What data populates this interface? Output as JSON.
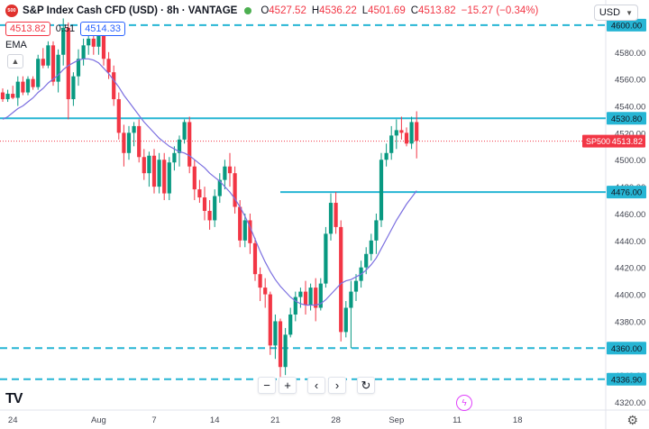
{
  "header": {
    "badge_text": "500",
    "title": "S&P Index Cash CFD (USD) · 8h · VANTAGE",
    "ohlc": [
      {
        "label": "O",
        "value": "4527.52"
      },
      {
        "label": "H",
        "value": "4536.22"
      },
      {
        "label": "L",
        "value": "4501.69"
      },
      {
        "label": "C",
        "value": "4513.82"
      },
      {
        "label": "",
        "value": "−15.27 (−0.34%)"
      }
    ],
    "bid": "4513.82",
    "spread": "0.51",
    "ask": "4514.33",
    "indicator": "EMA",
    "currency": "USD"
  },
  "colors": {
    "up": "#089981",
    "down": "#f23645",
    "ema": "#7b6fe0",
    "horizontal_line": "#26b5d4",
    "last_price": "#f23645"
  },
  "chart_data": {
    "type": "candlestick",
    "y_axis": {
      "range": [
        4314,
        4612
      ],
      "ticks": [
        "4320.00",
        "4340.00",
        "4360.00",
        "4380.00",
        "4400.00",
        "4420.00",
        "4440.00",
        "4460.00",
        "4480.00",
        "4500.00",
        "4520.00",
        "4540.00",
        "4560.00",
        "4580.00",
        "4600.00"
      ]
    },
    "x_axis": {
      "labels": [
        {
          "text": "24",
          "bar": 2
        },
        {
          "text": "Aug",
          "bar": 19
        },
        {
          "text": "7",
          "bar": 30
        },
        {
          "text": "14",
          "bar": 42
        },
        {
          "text": "21",
          "bar": 54
        },
        {
          "text": "28",
          "bar": 66
        },
        {
          "text": "Sep",
          "bar": 78
        },
        {
          "text": "11",
          "bar": 90
        },
        {
          "text": "18",
          "bar": 102
        }
      ]
    },
    "candles": [
      [
        4550,
        4553,
        4543,
        4545
      ],
      [
        4545,
        4552,
        4543,
        4549
      ],
      [
        4549,
        4555,
        4545,
        4546
      ],
      [
        4546,
        4562,
        4540,
        4558
      ],
      [
        4558,
        4562,
        4548,
        4550
      ],
      [
        4550,
        4562,
        4548,
        4560
      ],
      [
        4560,
        4562,
        4552,
        4554
      ],
      [
        4554,
        4578,
        4552,
        4575
      ],
      [
        4575,
        4583,
        4568,
        4570
      ],
      [
        4570,
        4588,
        4568,
        4585
      ],
      [
        4585,
        4588,
        4555,
        4558
      ],
      [
        4558,
        4582,
        4550,
        4578
      ],
      [
        4578,
        4605,
        4570,
        4598
      ],
      [
        4598,
        4602,
        4530,
        4545
      ],
      [
        4545,
        4565,
        4540,
        4562
      ],
      [
        4562,
        4582,
        4555,
        4575
      ],
      [
        4575,
        4590,
        4570,
        4585
      ],
      [
        4585,
        4592,
        4578,
        4590
      ],
      [
        4590,
        4596,
        4578,
        4584
      ],
      [
        4584,
        4595,
        4578,
        4592
      ],
      [
        4592,
        4598,
        4570,
        4575
      ],
      [
        4575,
        4580,
        4560,
        4565
      ],
      [
        4565,
        4570,
        4540,
        4545
      ],
      [
        4545,
        4550,
        4515,
        4520
      ],
      [
        4520,
        4526,
        4495,
        4505
      ],
      [
        4505,
        4525,
        4500,
        4520
      ],
      [
        4520,
        4528,
        4510,
        4525
      ],
      [
        4525,
        4530,
        4498,
        4502
      ],
      [
        4502,
        4508,
        4485,
        4490
      ],
      [
        4490,
        4506,
        4480,
        4503
      ],
      [
        4503,
        4508,
        4475,
        4480
      ],
      [
        4480,
        4505,
        4475,
        4500
      ],
      [
        4500,
        4505,
        4470,
        4475
      ],
      [
        4475,
        4502,
        4470,
        4498
      ],
      [
        4498,
        4510,
        4492,
        4505
      ],
      [
        4505,
        4518,
        4495,
        4515
      ],
      [
        4515,
        4530,
        4512,
        4528
      ],
      [
        4528,
        4532,
        4490,
        4495
      ],
      [
        4495,
        4500,
        4470,
        4478
      ],
      [
        4478,
        4485,
        4468,
        4472
      ],
      [
        4472,
        4480,
        4455,
        4462
      ],
      [
        4462,
        4470,
        4448,
        4455
      ],
      [
        4455,
        4478,
        4450,
        4473
      ],
      [
        4473,
        4490,
        4468,
        4485
      ],
      [
        4485,
        4500,
        4478,
        4495
      ],
      [
        4495,
        4505,
        4480,
        4490
      ],
      [
        4490,
        4495,
        4460,
        4465
      ],
      [
        4465,
        4470,
        4435,
        4440
      ],
      [
        4440,
        4460,
        4435,
        4455
      ],
      [
        4455,
        4460,
        4430,
        4438
      ],
      [
        4438,
        4442,
        4410,
        4415
      ],
      [
        4415,
        4420,
        4395,
        4405
      ],
      [
        4405,
        4412,
        4390,
        4400
      ],
      [
        4400,
        4402,
        4355,
        4362
      ],
      [
        4362,
        4385,
        4352,
        4380
      ],
      [
        4380,
        4382,
        4338,
        4346
      ],
      [
        4346,
        4375,
        4340,
        4370
      ],
      [
        4370,
        4390,
        4368,
        4385
      ],
      [
        4385,
        4402,
        4380,
        4398
      ],
      [
        4398,
        4405,
        4390,
        4402
      ],
      [
        4402,
        4410,
        4385,
        4392
      ],
      [
        4392,
        4408,
        4388,
        4405
      ],
      [
        4405,
        4412,
        4380,
        4390
      ],
      [
        4390,
        4412,
        4388,
        4408
      ],
      [
        4408,
        4450,
        4405,
        4445
      ],
      [
        4445,
        4475,
        4440,
        4468
      ],
      [
        4468,
        4476,
        4445,
        4450
      ],
      [
        4450,
        4455,
        4365,
        4372
      ],
      [
        4372,
        4395,
        4368,
        4390
      ],
      [
        4390,
        4410,
        4360,
        4402
      ],
      [
        4402,
        4415,
        4395,
        4410
      ],
      [
        4410,
        4425,
        4405,
        4420
      ],
      [
        4420,
        4435,
        4415,
        4430
      ],
      [
        4430,
        4445,
        4425,
        4440
      ],
      [
        4440,
        4460,
        4430,
        4455
      ],
      [
        4455,
        4505,
        4450,
        4500
      ],
      [
        4500,
        4512,
        4495,
        4505
      ],
      [
        4505,
        4525,
        4500,
        4518
      ],
      [
        4518,
        4530,
        4508,
        4522
      ],
      [
        4522,
        4532,
        4515,
        4520
      ],
      [
        4520,
        4524,
        4510,
        4512
      ],
      [
        4512,
        4532,
        4508,
        4528
      ],
      [
        4528,
        4536,
        4501,
        4514
      ]
    ],
    "ema": [
      4530,
      4532,
      4535,
      4538,
      4540,
      4543,
      4546,
      4550,
      4553,
      4557,
      4560,
      4563,
      4567,
      4570,
      4572,
      4574,
      4575,
      4575,
      4574,
      4572,
      4568,
      4564,
      4559,
      4554,
      4548,
      4543,
      4538,
      4533,
      4528,
      4524,
      4520,
      4516,
      4513,
      4510,
      4508,
      4506,
      4505,
      4503,
      4500,
      4497,
      4494,
      4490,
      4487,
      4484,
      4480,
      4476,
      4471,
      4465,
      4458,
      4450,
      4441,
      4432,
      4424,
      4417,
      4411,
      4406,
      4402,
      4398,
      4395,
      4393,
      4392,
      4392,
      4392,
      4393,
      4396,
      4400,
      4404,
      4408,
      4410,
      4411,
      4413,
      4415,
      4418,
      4422,
      4427,
      4434,
      4441,
      4448,
      4455,
      4461,
      4467,
      4472,
      4477
    ],
    "horizontal_lines": [
      {
        "price": 4600.0,
        "label": "4600.00",
        "style": "dashed"
      },
      {
        "price": 4530.8,
        "label": "4530.80",
        "style": "solid"
      },
      {
        "price": 4476.0,
        "label": "4476.00",
        "style": "solid",
        "start_bar": 55
      },
      {
        "price": 4360.0,
        "label": "4360.00",
        "style": "dashed"
      },
      {
        "price": 4336.9,
        "label": "4336.90",
        "style": "dashed"
      }
    ],
    "last_price": {
      "label": "SP500",
      "value": "4513.82",
      "price": 4513.82
    }
  }
}
